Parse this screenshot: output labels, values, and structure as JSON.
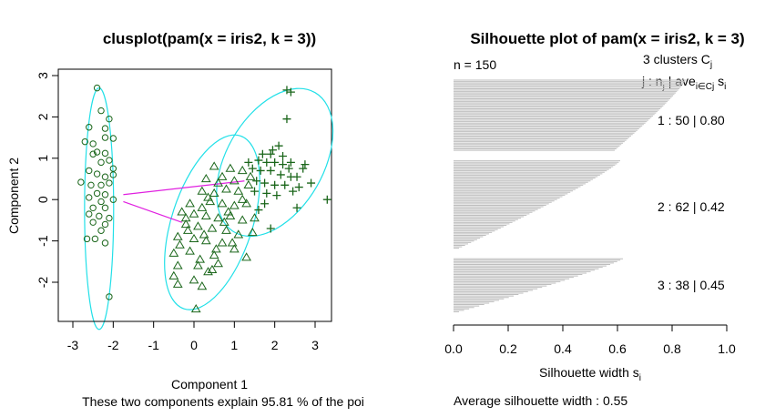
{
  "chart_data": [
    {
      "type": "scatter",
      "title": "clusplot(pam(x = iris2, k = 3))",
      "xlabel": "Component 1",
      "ylabel": "Component 2",
      "subtitle": "These two components explain 95.81 % of the poi",
      "xlim": [
        -3.1,
        3.6
      ],
      "ylim": [
        -3.0,
        3.1
      ],
      "xticks": [
        "-3",
        "-2",
        "-1",
        "0",
        "1",
        "2",
        "3"
      ],
      "yticks": [
        "-2",
        "-1",
        "0",
        "1",
        "2",
        "3"
      ],
      "colors": {
        "points": "#1a661a",
        "ellipse": "#22e0e8",
        "segment": "#e020e0",
        "axis": "#000000"
      },
      "clusters": [
        {
          "name": "cluster 1",
          "marker": "circle",
          "ellipse": {
            "cx": -2.35,
            "cy": -0.22,
            "rx": 0.36,
            "ry": 2.92
          },
          "points": [
            [
              -2.4,
              2.7
            ],
            [
              -2.3,
              2.15
            ],
            [
              -2.1,
              1.95
            ],
            [
              -2.6,
              1.75
            ],
            [
              -2.2,
              1.72
            ],
            [
              -2.5,
              1.35
            ],
            [
              -2.2,
              1.5
            ],
            [
              -2.0,
              1.48
            ],
            [
              -2.4,
              1.15
            ],
            [
              -2.2,
              1.12
            ],
            [
              -2.1,
              0.95
            ],
            [
              -2.5,
              1.1
            ],
            [
              -2.3,
              0.9
            ],
            [
              -2.0,
              0.75
            ],
            [
              -2.6,
              0.7
            ],
            [
              -2.4,
              0.62
            ],
            [
              -2.2,
              0.55
            ],
            [
              -2.0,
              0.6
            ],
            [
              -2.8,
              0.42
            ],
            [
              -2.55,
              0.35
            ],
            [
              -2.3,
              0.35
            ],
            [
              -2.1,
              0.4
            ],
            [
              -2.4,
              0.15
            ],
            [
              -2.2,
              0.12
            ],
            [
              -2.6,
              0.05
            ],
            [
              -2.3,
              -0.05
            ],
            [
              -2.0,
              0.0
            ],
            [
              -2.5,
              -0.2
            ],
            [
              -2.2,
              -0.2
            ],
            [
              -2.6,
              -0.35
            ],
            [
              -2.35,
              -0.4
            ],
            [
              -2.1,
              -0.45
            ],
            [
              -2.5,
              -0.55
            ],
            [
              -2.2,
              -0.6
            ],
            [
              -2.3,
              -0.75
            ],
            [
              -2.65,
              -0.95
            ],
            [
              -2.45,
              -0.95
            ],
            [
              -2.2,
              -1.05
            ],
            [
              -2.1,
              -2.35
            ],
            [
              -2.7,
              1.4
            ]
          ]
        },
        {
          "name": "cluster 2",
          "marker": "triangle",
          "ellipse": {
            "cx": 0.45,
            "cy": -0.55,
            "rx": 1.0,
            "ry": 2.2,
            "rotate": 18
          },
          "points": [
            [
              0.5,
              0.8
            ],
            [
              0.9,
              0.75
            ],
            [
              1.2,
              0.7
            ],
            [
              0.3,
              0.5
            ],
            [
              0.6,
              0.4
            ],
            [
              1.0,
              0.45
            ],
            [
              1.4,
              0.55
            ],
            [
              0.2,
              0.2
            ],
            [
              0.5,
              0.15
            ],
            [
              0.8,
              0.25
            ],
            [
              1.1,
              0.2
            ],
            [
              -0.1,
              -0.1
            ],
            [
              0.2,
              -0.2
            ],
            [
              0.4,
              -0.05
            ],
            [
              0.7,
              -0.1
            ],
            [
              1.0,
              -0.15
            ],
            [
              1.3,
              -0.1
            ],
            [
              -0.3,
              -0.3
            ],
            [
              0.0,
              -0.35
            ],
            [
              0.3,
              -0.4
            ],
            [
              0.6,
              -0.45
            ],
            [
              0.9,
              -0.4
            ],
            [
              1.2,
              -0.5
            ],
            [
              1.5,
              -0.45
            ],
            [
              -0.2,
              -0.6
            ],
            [
              0.1,
              -0.65
            ],
            [
              0.45,
              -0.7
            ],
            [
              0.8,
              -0.75
            ],
            [
              1.1,
              -0.85
            ],
            [
              -0.4,
              -0.9
            ],
            [
              0.0,
              -0.95
            ],
            [
              0.3,
              -1.0
            ],
            [
              0.7,
              -1.05
            ],
            [
              1.0,
              -1.2
            ],
            [
              -0.5,
              -1.3
            ],
            [
              -0.1,
              -1.25
            ],
            [
              0.5,
              -1.35
            ],
            [
              1.3,
              -1.4
            ],
            [
              -0.4,
              -1.6
            ],
            [
              0.1,
              -1.6
            ],
            [
              0.45,
              -1.7
            ],
            [
              -0.5,
              -1.85
            ],
            [
              0.0,
              -1.95
            ],
            [
              0.35,
              -1.75
            ],
            [
              0.6,
              -1.55
            ],
            [
              -0.4,
              -2.05
            ],
            [
              0.2,
              -2.1
            ],
            [
              0.05,
              -2.65
            ],
            [
              0.85,
              -0.3
            ],
            [
              1.45,
              -0.8
            ],
            [
              0.95,
              -1.05
            ],
            [
              -0.2,
              -0.45
            ],
            [
              0.25,
              -0.85
            ],
            [
              0.55,
              -1.2
            ],
            [
              1.2,
              0.0
            ],
            [
              0.7,
              0.55
            ],
            [
              -0.15,
              -0.75
            ],
            [
              0.35,
              0.05
            ],
            [
              1.35,
              0.35
            ],
            [
              0.75,
              -0.55
            ],
            [
              0.15,
              -1.45
            ],
            [
              -0.35,
              -1.1
            ]
          ]
        },
        {
          "name": "cluster 3",
          "marker": "plus",
          "ellipse": {
            "cx": 2.0,
            "cy": 0.9,
            "rx": 1.2,
            "ry": 1.95,
            "rotate": 30
          },
          "points": [
            [
              2.3,
              2.65
            ],
            [
              2.4,
              2.6
            ],
            [
              2.3,
              1.95
            ],
            [
              1.7,
              1.1
            ],
            [
              1.9,
              1.1
            ],
            [
              2.2,
              1.05
            ],
            [
              1.6,
              0.95
            ],
            [
              1.8,
              0.9
            ],
            [
              2.0,
              0.9
            ],
            [
              2.4,
              0.9
            ],
            [
              2.75,
              0.85
            ],
            [
              1.45,
              0.75
            ],
            [
              1.65,
              0.7
            ],
            [
              1.9,
              0.7
            ],
            [
              2.15,
              0.6
            ],
            [
              2.4,
              0.55
            ],
            [
              2.7,
              0.75
            ],
            [
              1.55,
              0.45
            ],
            [
              1.75,
              0.4
            ],
            [
              2.0,
              0.35
            ],
            [
              2.25,
              0.35
            ],
            [
              1.5,
              0.2
            ],
            [
              1.8,
              0.15
            ],
            [
              2.05,
              0.1
            ],
            [
              2.45,
              0.2
            ],
            [
              2.9,
              0.4
            ],
            [
              3.3,
              0.0
            ],
            [
              1.75,
              -0.1
            ],
            [
              1.9,
              -0.7
            ],
            [
              2.55,
              -0.2
            ],
            [
              1.35,
              0.9
            ],
            [
              2.1,
              1.3
            ],
            [
              2.55,
              0.55
            ],
            [
              1.6,
              -0.25
            ],
            [
              2.2,
              0.85
            ],
            [
              1.95,
              1.2
            ],
            [
              2.6,
              0.3
            ],
            [
              2.35,
              0.75
            ]
          ]
        }
      ],
      "segments": [
        {
          "from": [
            -1.75,
            0.12
          ],
          "to": [
            1.25,
            0.45
          ]
        },
        {
          "from": [
            -1.75,
            -0.05
          ],
          "to": [
            -0.3,
            -0.55
          ]
        }
      ]
    },
    {
      "type": "bar",
      "orientation": "horizontal",
      "title": "Silhouette plot of pam(x = iris2, k = 3)",
      "n_label": "n = 150",
      "legend_line1_prefix": "3  clusters  C",
      "legend_line1_sub": "j",
      "legend_line2": {
        "a": "j :  n",
        "a_sub": "j",
        "b": " | ave",
        "b_sub": "i∈Cj",
        "c": "  s",
        "c_sub": "i"
      },
      "cluster_labels": [
        "1 :   50  |  0.80",
        "2 :   62  |  0.42",
        "3 :   38  |  0.45"
      ],
      "xlabel": "Silhouette width s",
      "xlabel_sub": "i",
      "footer": "Average silhouette width :  0.55",
      "xlim": [
        0.0,
        1.0
      ],
      "xticks": [
        "0.0",
        "0.2",
        "0.4",
        "0.6",
        "0.8",
        "1.0"
      ],
      "bar_color": "#bebebe",
      "clusters": [
        {
          "label": "1",
          "n": 50,
          "ave": 0.8,
          "max": 0.85,
          "min": 0.59
        },
        {
          "label": "2",
          "n": 62,
          "ave": 0.42,
          "max": 0.61,
          "min": 0.02
        },
        {
          "label": "3",
          "n": 38,
          "ave": 0.45,
          "max": 0.62,
          "min": 0.02
        }
      ]
    }
  ]
}
